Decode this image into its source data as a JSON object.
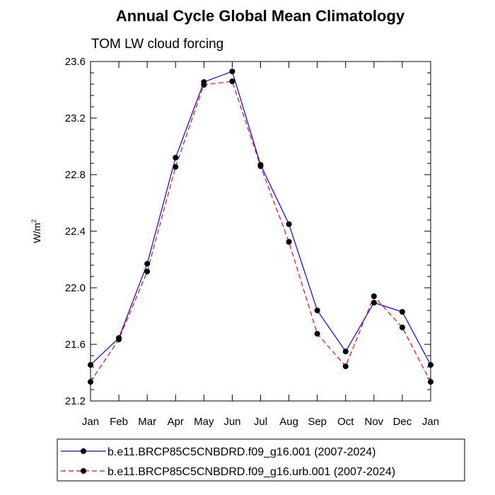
{
  "chart_data": {
    "type": "line",
    "title": "Annual Cycle Global Mean Climatology",
    "subtitle": "TOM LW cloud forcing",
    "ylabel_base": "W/m",
    "ylabel_exp": "2",
    "xlabel": "",
    "categories": [
      "Jan",
      "Feb",
      "Mar",
      "Apr",
      "May",
      "Jun",
      "Jul",
      "Aug",
      "Sep",
      "Oct",
      "Nov",
      "Dec",
      "Jan"
    ],
    "ylim": [
      21.2,
      23.6
    ],
    "yticks": [
      "21.2",
      "21.6",
      "22.0",
      "22.4",
      "22.8",
      "23.2",
      "23.6"
    ],
    "series": [
      {
        "name": "b.e11.BRCP85C5CNBDRD.f09_g16.001 (2007-2024)",
        "color": "#0000ff",
        "dash": "solid",
        "values": [
          21.455,
          21.645,
          22.17,
          22.92,
          23.455,
          23.53,
          22.87,
          22.45,
          21.84,
          21.55,
          21.895,
          21.83,
          21.455
        ]
      },
      {
        "name": "b.e11.BRCP85C5CNBDRD.f09_g16.urb.001 (2007-2024)",
        "color": "#ff0000",
        "dash": "dashed",
        "values": [
          21.335,
          21.635,
          22.115,
          22.855,
          23.435,
          23.46,
          22.86,
          22.325,
          21.675,
          21.445,
          21.94,
          21.72,
          21.335
        ]
      }
    ]
  }
}
